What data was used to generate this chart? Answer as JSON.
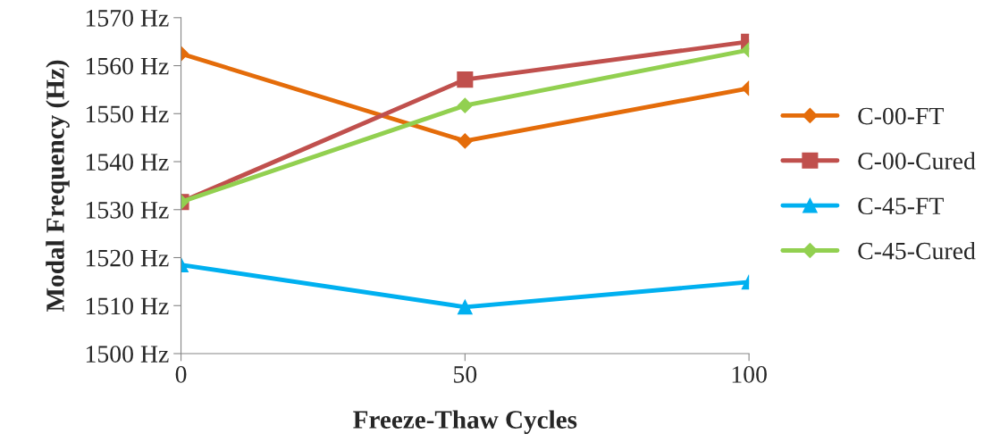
{
  "chart_data": {
    "type": "line",
    "xlabel": "Freeze-Thaw Cycles",
    "ylabel": "Modal Frequency (Hz)",
    "x": [
      0,
      50,
      100
    ],
    "series": [
      {
        "name": "C-00-FT",
        "color": "#e46c0a",
        "marker": "diamond",
        "values": [
          1562.5,
          1544.3,
          1555.3
        ]
      },
      {
        "name": "C-00-Cured",
        "color": "#c0504d",
        "marker": "square",
        "values": [
          1531.6,
          1557.1,
          1565.0
        ]
      },
      {
        "name": "C-45-FT",
        "color": "#00b0f0",
        "marker": "triangle",
        "values": [
          1518.5,
          1509.7,
          1514.9
        ]
      },
      {
        "name": "C-45-Cured",
        "color": "#92d050",
        "marker": "diamond",
        "values": [
          1531.6,
          1551.7,
          1563.3
        ]
      }
    ],
    "xlim": [
      0,
      100
    ],
    "xticks": [
      0,
      50,
      100
    ],
    "ylim": [
      1500,
      1570
    ],
    "yticks": [
      {
        "value": 1500,
        "label": "1500 Hz"
      },
      {
        "value": 1510,
        "label": "1510 Hz"
      },
      {
        "value": 1520,
        "label": "1520 Hz"
      },
      {
        "value": 1530,
        "label": "1530 Hz"
      },
      {
        "value": 1540,
        "label": "1540 Hz"
      },
      {
        "value": 1550,
        "label": "1550 Hz"
      },
      {
        "value": 1560,
        "label": "1560 Hz"
      },
      {
        "value": 1570,
        "label": "1570 Hz"
      }
    ],
    "grid": false,
    "legend": "right"
  }
}
